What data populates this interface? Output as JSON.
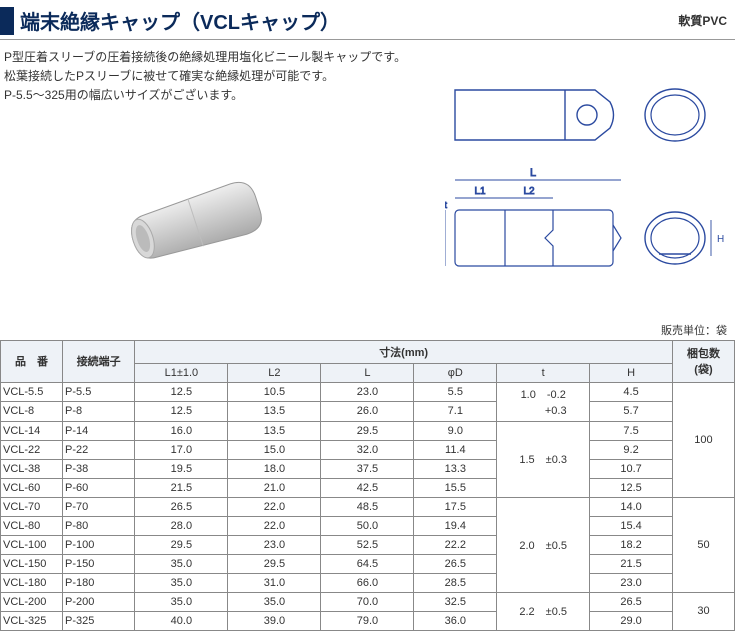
{
  "header": {
    "title": "端末絶縁キャップ（VCLキャップ）",
    "material": "軟質PVC"
  },
  "description": {
    "line1": "P型圧着スリーブの圧着接続後の絶縁処理用塩化ビニール製キャップです。",
    "line2": "松葉接続したPスリーブに被せて確実な絶縁処理が可能です。",
    "line3": "P-5.5〜325用の幅広いサイズがございます。"
  },
  "diagram_labels": {
    "L": "L",
    "L1": "L1",
    "L2": "L2",
    "phiD": "φD",
    "H": "H",
    "t": "t"
  },
  "unit_label": "販売単位：袋",
  "table": {
    "head": {
      "part_no": "品　番",
      "terminal": "接続端子",
      "dimensions": "寸法(mm)",
      "pack": "梱包数\n(袋)",
      "L1": "L1±1.0",
      "L2": "L2",
      "L": "L",
      "phiD": "φD",
      "t": "t",
      "H": "H"
    },
    "rows": [
      {
        "pn": "VCL-5.5",
        "term": "P-5.5",
        "L1": "12.5",
        "L2": "10.5",
        "L": "23.0",
        "D": "5.5",
        "H": "4.5"
      },
      {
        "pn": "VCL-8",
        "term": "P-8",
        "L1": "12.5",
        "L2": "13.5",
        "L": "26.0",
        "D": "7.1",
        "H": "5.7"
      },
      {
        "pn": "VCL-14",
        "term": "P-14",
        "L1": "16.0",
        "L2": "13.5",
        "L": "29.5",
        "D": "9.0",
        "H": "7.5"
      },
      {
        "pn": "VCL-22",
        "term": "P-22",
        "L1": "17.0",
        "L2": "15.0",
        "L": "32.0",
        "D": "11.4",
        "H": "9.2"
      },
      {
        "pn": "VCL-38",
        "term": "P-38",
        "L1": "19.5",
        "L2": "18.0",
        "L": "37.5",
        "D": "13.3",
        "H": "10.7"
      },
      {
        "pn": "VCL-60",
        "term": "P-60",
        "L1": "21.5",
        "L2": "21.0",
        "L": "42.5",
        "D": "15.5",
        "H": "12.5"
      },
      {
        "pn": "VCL-70",
        "term": "P-70",
        "L1": "26.5",
        "L2": "22.0",
        "L": "48.5",
        "D": "17.5",
        "H": "14.0"
      },
      {
        "pn": "VCL-80",
        "term": "P-80",
        "L1": "28.0",
        "L2": "22.0",
        "L": "50.0",
        "D": "19.4",
        "H": "15.4"
      },
      {
        "pn": "VCL-100",
        "term": "P-100",
        "L1": "29.5",
        "L2": "23.0",
        "L": "52.5",
        "D": "22.2",
        "H": "18.2"
      },
      {
        "pn": "VCL-150",
        "term": "P-150",
        "L1": "35.0",
        "L2": "29.5",
        "L": "64.5",
        "D": "26.5",
        "H": "21.5"
      },
      {
        "pn": "VCL-180",
        "term": "P-180",
        "L1": "35.0",
        "L2": "31.0",
        "L": "66.0",
        "D": "28.5",
        "H": "23.0"
      },
      {
        "pn": "VCL-200",
        "term": "P-200",
        "L1": "35.0",
        "L2": "35.0",
        "L": "70.0",
        "D": "32.5",
        "H": "26.5"
      },
      {
        "pn": "VCL-325",
        "term": "P-325",
        "L1": "40.0",
        "L2": "39.0",
        "L": "79.0",
        "D": "36.0",
        "H": "29.0"
      }
    ],
    "t_groups": [
      {
        "text": "1.0　-0.2\n　　  +0.3",
        "span": 2
      },
      {
        "text": "1.5　±0.3",
        "span": 4
      },
      {
        "text": "2.0　±0.5",
        "span": 5
      },
      {
        "text": "2.2　±0.5",
        "span": 2
      }
    ],
    "pack_groups": [
      {
        "text": "100",
        "span": 6
      },
      {
        "text": "50",
        "span": 5
      },
      {
        "text": "30",
        "span": 2
      }
    ]
  },
  "colors": {
    "header_bar": "#0b2a5a",
    "diagram_line": "#2b4aa0",
    "diagram_dim": "#2b4aa0",
    "table_border": "#888888",
    "th_bg": "#eef2f7"
  }
}
